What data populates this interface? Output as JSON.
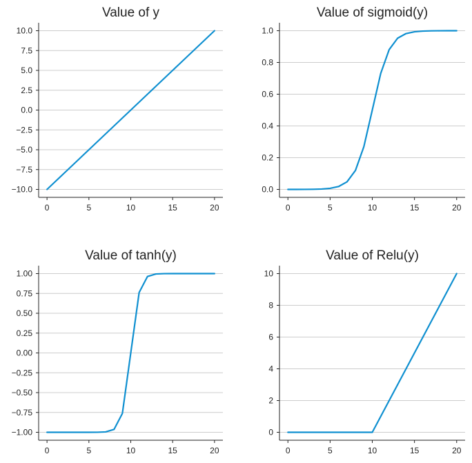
{
  "colors": {
    "line": "#0e8fd0",
    "grid": "#cccccc",
    "axis": "#222222"
  },
  "chart_data": [
    {
      "type": "line",
      "title": "Value of y",
      "x": [
        0,
        1,
        2,
        3,
        4,
        5,
        6,
        7,
        8,
        9,
        10,
        11,
        12,
        13,
        14,
        15,
        16,
        17,
        18,
        19,
        20
      ],
      "values": [
        -10,
        -9,
        -8,
        -7,
        -6,
        -5,
        -4,
        -3,
        -2,
        -1,
        0,
        1,
        2,
        3,
        4,
        5,
        6,
        7,
        8,
        9,
        10
      ],
      "xlim": [
        -1,
        21
      ],
      "ylim": [
        -11,
        11
      ],
      "xticks": [
        0,
        5,
        10,
        15,
        20
      ],
      "xtick_labels": [
        "0",
        "5",
        "10",
        "15",
        "20"
      ],
      "yticks": [
        -10,
        -7.5,
        -5,
        -2.5,
        0,
        2.5,
        5,
        7.5,
        10
      ],
      "ytick_labels": [
        "−10.0",
        "−7.5",
        "−5.0",
        "−2.5",
        "0.0",
        "2.5",
        "5.0",
        "7.5",
        "10.0"
      ],
      "grid": "horizontal"
    },
    {
      "type": "line",
      "title": "Value of sigmoid(y)",
      "x": [
        0,
        1,
        2,
        3,
        4,
        5,
        6,
        7,
        8,
        9,
        10,
        11,
        12,
        13,
        14,
        15,
        16,
        17,
        18,
        19,
        20
      ],
      "values": [
        5e-05,
        0.00012,
        0.00034,
        0.00091,
        0.00247,
        0.00669,
        0.01799,
        0.04743,
        0.1192,
        0.2689,
        0.5,
        0.7311,
        0.8808,
        0.9526,
        0.982,
        0.9933,
        0.9975,
        0.9991,
        0.9997,
        0.9999,
        0.99995
      ],
      "xlim": [
        -1,
        21
      ],
      "ylim": [
        -0.05,
        1.05
      ],
      "xticks": [
        0,
        5,
        10,
        15,
        20
      ],
      "xtick_labels": [
        "0",
        "5",
        "10",
        "15",
        "20"
      ],
      "yticks": [
        0,
        0.2,
        0.4,
        0.6,
        0.8,
        1.0
      ],
      "ytick_labels": [
        "0.0",
        "0.2",
        "0.4",
        "0.6",
        "0.8",
        "1.0"
      ],
      "grid": "horizontal"
    },
    {
      "type": "line",
      "title": "Value of tanh(y)",
      "x": [
        0,
        1,
        2,
        3,
        4,
        5,
        6,
        7,
        8,
        9,
        10,
        11,
        12,
        13,
        14,
        15,
        16,
        17,
        18,
        19,
        20
      ],
      "values": [
        -1,
        -1,
        -1,
        -1,
        -1,
        -0.9999,
        -0.9993,
        -0.9951,
        -0.964,
        -0.7616,
        0,
        0.7616,
        0.964,
        0.9951,
        0.9993,
        0.9999,
        1,
        1,
        1,
        1,
        1
      ],
      "xlim": [
        -1,
        21
      ],
      "ylim": [
        -1.1,
        1.1
      ],
      "xticks": [
        0,
        5,
        10,
        15,
        20
      ],
      "xtick_labels": [
        "0",
        "5",
        "10",
        "15",
        "20"
      ],
      "yticks": [
        -1,
        -0.75,
        -0.5,
        -0.25,
        0,
        0.25,
        0.5,
        0.75,
        1
      ],
      "ytick_labels": [
        "−1.00",
        "−0.75",
        "−0.50",
        "−0.25",
        "0.00",
        "0.25",
        "0.50",
        "0.75",
        "1.00"
      ],
      "grid": "horizontal"
    },
    {
      "type": "line",
      "title": "Value of Relu(y)",
      "x": [
        0,
        1,
        2,
        3,
        4,
        5,
        6,
        7,
        8,
        9,
        10,
        11,
        12,
        13,
        14,
        15,
        16,
        17,
        18,
        19,
        20
      ],
      "values": [
        0,
        0,
        0,
        0,
        0,
        0,
        0,
        0,
        0,
        0,
        0,
        1,
        2,
        3,
        4,
        5,
        6,
        7,
        8,
        9,
        10
      ],
      "xlim": [
        -1,
        21
      ],
      "ylim": [
        -0.5,
        10.5
      ],
      "xticks": [
        0,
        5,
        10,
        15,
        20
      ],
      "xtick_labels": [
        "0",
        "5",
        "10",
        "15",
        "20"
      ],
      "yticks": [
        0,
        2,
        4,
        6,
        8,
        10
      ],
      "ytick_labels": [
        "0",
        "2",
        "4",
        "6",
        "8",
        "10"
      ],
      "grid": "horizontal"
    }
  ]
}
